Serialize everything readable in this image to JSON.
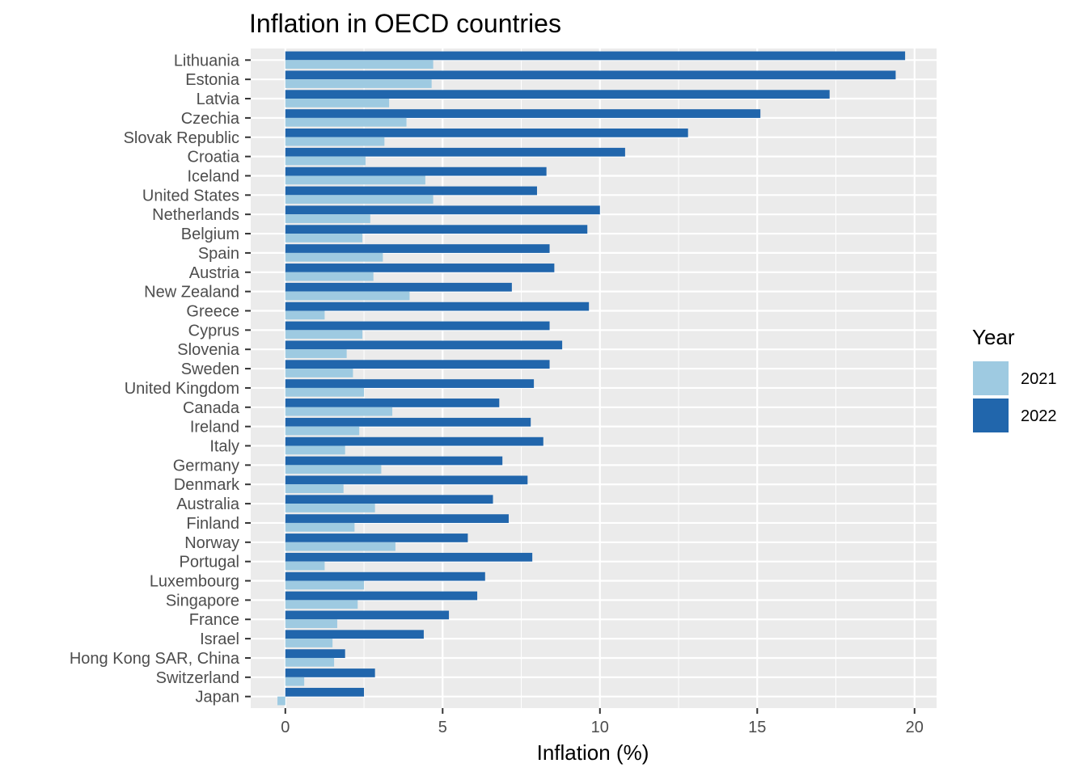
{
  "chart_data": {
    "type": "bar",
    "orientation": "horizontal",
    "title": "Inflation in OECD countries",
    "xlabel": "Inflation (%)",
    "ylabel": "",
    "xlim": [
      -1.1,
      20.7
    ],
    "xticks": [
      0,
      5,
      10,
      15,
      20
    ],
    "grid": true,
    "legend_position": "right",
    "legend_title": "Year",
    "categories": [
      "Lithuania",
      "Estonia",
      "Latvia",
      "Czechia",
      "Slovak Republic",
      "Croatia",
      "Iceland",
      "United States",
      "Netherlands",
      "Belgium",
      "Spain",
      "Austria",
      "New Zealand",
      "Greece",
      "Cyprus",
      "Slovenia",
      "Sweden",
      "United Kingdom",
      "Canada",
      "Ireland",
      "Italy",
      "Germany",
      "Denmark",
      "Australia",
      "Finland",
      "Norway",
      "Portugal",
      "Luxembourg",
      "Singapore",
      "France",
      "Israel",
      "Hong Kong SAR, China",
      "Switzerland",
      "Japan"
    ],
    "series": [
      {
        "name": "2021",
        "color": "#9ecae1",
        "values": [
          4.7,
          4.65,
          3.3,
          3.85,
          3.15,
          2.55,
          4.45,
          4.7,
          2.7,
          2.45,
          3.1,
          2.8,
          3.95,
          1.25,
          2.45,
          1.95,
          2.15,
          2.5,
          3.4,
          2.35,
          1.9,
          3.05,
          1.85,
          2.85,
          2.2,
          3.5,
          1.25,
          2.5,
          2.3,
          1.65,
          1.5,
          1.55,
          0.6,
          -0.25
        ]
      },
      {
        "name": "2022",
        "color": "#2166ac",
        "values": [
          19.7,
          19.4,
          17.3,
          15.1,
          12.8,
          10.8,
          8.3,
          8.0,
          10.0,
          9.6,
          8.4,
          8.55,
          7.2,
          9.65,
          8.4,
          8.8,
          8.4,
          7.9,
          6.8,
          7.8,
          8.2,
          6.9,
          7.7,
          6.6,
          7.1,
          5.8,
          7.85,
          6.35,
          6.1,
          5.2,
          4.4,
          1.9,
          2.85,
          2.5
        ]
      }
    ]
  }
}
